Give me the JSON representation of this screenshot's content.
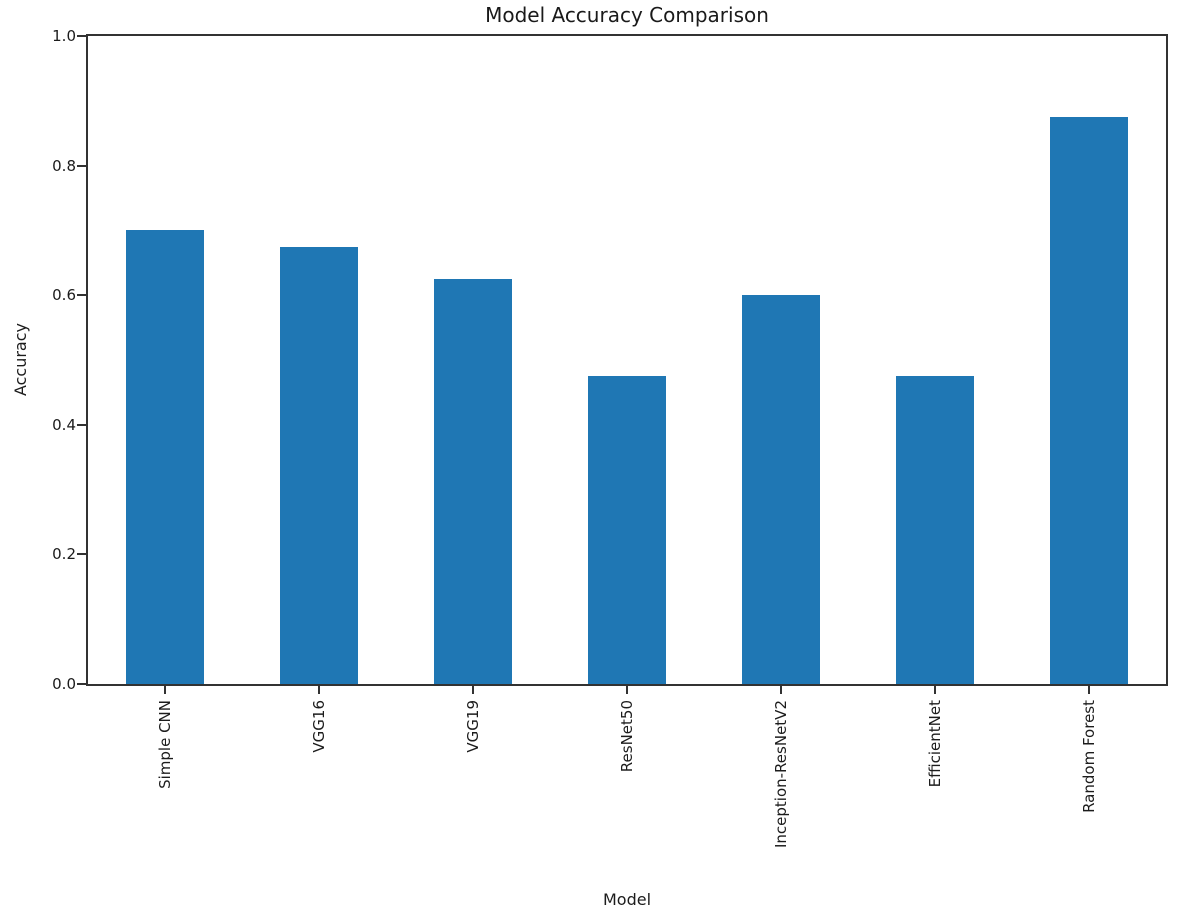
{
  "figure": {
    "background": "#ffffff"
  },
  "chart_data": {
    "type": "bar",
    "title": "Model Accuracy Comparison",
    "xlabel": "Model",
    "ylabel": "Accuracy",
    "categories": [
      "Simple CNN",
      "VGG16",
      "VGG19",
      "ResNet50",
      "Inception-ResNetV2",
      "EfficientNet",
      "Random Forest"
    ],
    "values": [
      0.7,
      0.675,
      0.625,
      0.475,
      0.6,
      0.475,
      0.875
    ],
    "ylim": [
      0.0,
      1.0
    ],
    "yticks": [
      0.0,
      0.2,
      0.4,
      0.6,
      0.8,
      1.0
    ],
    "ytick_labels": [
      "0.0",
      "0.2",
      "0.4",
      "0.6",
      "0.8",
      "1.0"
    ],
    "x_tick_rotation": 90,
    "bar_color": "#1f77b4",
    "axis_color": "#323232",
    "text_color": "#1c1c1c",
    "grid": false,
    "legend": false,
    "bar_width_fraction": 0.5
  }
}
